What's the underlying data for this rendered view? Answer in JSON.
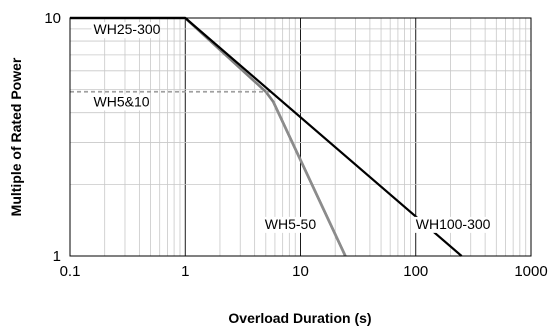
{
  "chart_data": {
    "type": "line",
    "title": "",
    "xlabel": "Overload Duration (s)",
    "ylabel": "Multiple of Rated Power",
    "xscale": "log",
    "yscale": "log",
    "xlim": [
      0.1,
      1000
    ],
    "ylim": [
      1,
      10
    ],
    "x_ticks": [
      {
        "value": 0.1,
        "label": "0.1"
      },
      {
        "value": 1,
        "label": "1"
      },
      {
        "value": 10,
        "label": "10"
      },
      {
        "value": 100,
        "label": "100"
      },
      {
        "value": 1000,
        "label": "1000"
      }
    ],
    "y_ticks": [
      {
        "value": 1,
        "label": "1"
      },
      {
        "value": 10,
        "label": "10"
      }
    ],
    "grid": true,
    "series": [
      {
        "name": "WH25-300",
        "color": "#7f7f7f",
        "style": "solid",
        "x": [
          0.1,
          1,
          5,
          5.8,
          24.5
        ],
        "y": [
          10,
          10,
          4.9,
          4.45,
          1
        ]
      },
      {
        "name": "WH5&10",
        "color": "#a0a0a0",
        "style": "dashed",
        "x": [
          0.1,
          5.5
        ],
        "y": [
          4.9,
          4.9
        ]
      },
      {
        "name": "WH5-50",
        "color": "#8c8c8c",
        "style": "solid",
        "x": [
          5.8,
          24.5
        ],
        "y": [
          4.45,
          1
        ]
      },
      {
        "name": "WH100-300",
        "color": "#000000",
        "style": "solid",
        "x": [
          0.1,
          1,
          250
        ],
        "y": [
          10,
          10,
          1
        ]
      }
    ],
    "annotations": [
      {
        "text": "WH25-300",
        "x": 0.16,
        "y": 8.55,
        "anchor": "start"
      },
      {
        "text": "WH5&10",
        "x": 0.16,
        "y": 4.25,
        "anchor": "start"
      },
      {
        "text": "WH5-50",
        "x": 4.9,
        "y": 1.3,
        "anchor": "start"
      },
      {
        "text": "WH100-300",
        "x": 100,
        "y": 1.3,
        "anchor": "start"
      }
    ]
  }
}
